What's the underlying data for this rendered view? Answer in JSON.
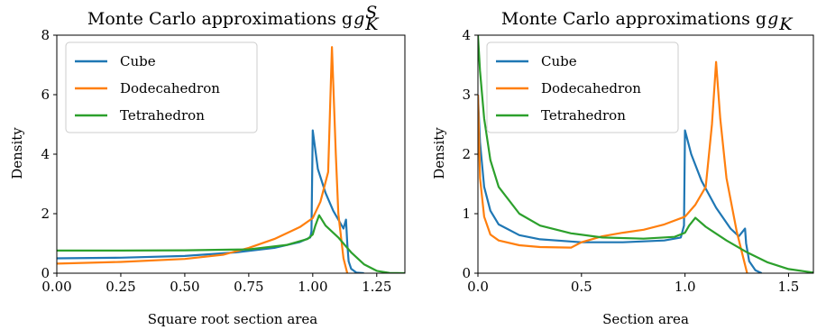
{
  "colors": {
    "cube": "#1f77b4",
    "dodecahedron": "#ff7f0e",
    "tetrahedron": "#2ca02c"
  },
  "chart_data": [
    {
      "type": "line",
      "title": "Monte Carlo approximations g",
      "title_sup": "S",
      "title_sub": "K",
      "xlabel": "Square root section area",
      "ylabel": "Density",
      "xlim": [
        0,
        1.36
      ],
      "ylim": [
        0,
        8
      ],
      "xticks": [
        "0.00",
        "0.25",
        "0.50",
        "0.75",
        "1.00",
        "1.25"
      ],
      "xtick_values": [
        0,
        0.25,
        0.5,
        0.75,
        1.0,
        1.25
      ],
      "yticks": [
        "0",
        "2",
        "4",
        "6",
        "8"
      ],
      "ytick_values": [
        0,
        2,
        4,
        6,
        8
      ],
      "legend": "top-left",
      "grid": false,
      "series": [
        {
          "name": "Cube",
          "color": "#1f77b4",
          "points": [
            [
              0,
              0.5
            ],
            [
              0.25,
              0.52
            ],
            [
              0.5,
              0.58
            ],
            [
              0.7,
              0.7
            ],
            [
              0.85,
              0.85
            ],
            [
              0.95,
              1.05
            ],
            [
              0.99,
              1.2
            ],
            [
              0.995,
              1.4
            ],
            [
              1.0,
              4.8
            ],
            [
              1.02,
              3.5
            ],
            [
              1.05,
              2.7
            ],
            [
              1.08,
              2.1
            ],
            [
              1.12,
              1.5
            ],
            [
              1.13,
              1.8
            ],
            [
              1.135,
              1.0
            ],
            [
              1.14,
              0.4
            ],
            [
              1.15,
              0.15
            ],
            [
              1.17,
              0.02
            ],
            [
              1.2,
              0
            ]
          ]
        },
        {
          "name": "Dodecahedron",
          "color": "#ff7f0e",
          "points": [
            [
              0,
              0.32
            ],
            [
              0.25,
              0.38
            ],
            [
              0.5,
              0.48
            ],
            [
              0.65,
              0.62
            ],
            [
              0.75,
              0.85
            ],
            [
              0.85,
              1.15
            ],
            [
              0.95,
              1.55
            ],
            [
              1.0,
              1.85
            ],
            [
              1.03,
              2.4
            ],
            [
              1.06,
              3.4
            ],
            [
              1.075,
              7.6
            ],
            [
              1.09,
              4.0
            ],
            [
              1.1,
              2.0
            ],
            [
              1.12,
              0.5
            ],
            [
              1.135,
              0
            ]
          ]
        },
        {
          "name": "Tetrahedron",
          "color": "#2ca02c",
          "points": [
            [
              0,
              0.76
            ],
            [
              0.25,
              0.76
            ],
            [
              0.5,
              0.77
            ],
            [
              0.75,
              0.8
            ],
            [
              0.9,
              0.95
            ],
            [
              0.98,
              1.15
            ],
            [
              1.0,
              1.3
            ],
            [
              1.01,
              1.6
            ],
            [
              1.025,
              1.95
            ],
            [
              1.05,
              1.6
            ],
            [
              1.1,
              1.2
            ],
            [
              1.15,
              0.7
            ],
            [
              1.2,
              0.3
            ],
            [
              1.25,
              0.08
            ],
            [
              1.3,
              0.01
            ],
            [
              1.36,
              0
            ]
          ]
        }
      ]
    },
    {
      "type": "line",
      "title": "Monte Carlo approximations g",
      "title_sub": "K",
      "xlabel": "Section area",
      "ylabel": "Density",
      "xlim": [
        0,
        1.62
      ],
      "ylim": [
        0,
        4
      ],
      "xticks": [
        "0.0",
        "0.5",
        "1.0",
        "1.5"
      ],
      "xtick_values": [
        0,
        0.5,
        1.0,
        1.5
      ],
      "yticks": [
        "0",
        "1",
        "2",
        "3",
        "4"
      ],
      "ytick_values": [
        0,
        1,
        2,
        3,
        4
      ],
      "legend": "top-left",
      "grid": false,
      "series": [
        {
          "name": "Cube",
          "color": "#1f77b4",
          "points": [
            [
              0,
              3.0
            ],
            [
              0.01,
              2.2
            ],
            [
              0.03,
              1.45
            ],
            [
              0.06,
              1.05
            ],
            [
              0.1,
              0.82
            ],
            [
              0.2,
              0.64
            ],
            [
              0.3,
              0.57
            ],
            [
              0.5,
              0.52
            ],
            [
              0.7,
              0.52
            ],
            [
              0.9,
              0.55
            ],
            [
              0.98,
              0.6
            ],
            [
              0.995,
              0.8
            ],
            [
              1.0,
              2.4
            ],
            [
              1.03,
              2.0
            ],
            [
              1.08,
              1.55
            ],
            [
              1.15,
              1.1
            ],
            [
              1.22,
              0.75
            ],
            [
              1.26,
              0.62
            ],
            [
              1.29,
              0.75
            ],
            [
              1.295,
              0.5
            ],
            [
              1.31,
              0.2
            ],
            [
              1.34,
              0.05
            ],
            [
              1.37,
              0
            ]
          ]
        },
        {
          "name": "Dodecahedron",
          "color": "#ff7f0e",
          "points": [
            [
              0,
              3.0
            ],
            [
              0.01,
              1.6
            ],
            [
              0.03,
              0.95
            ],
            [
              0.06,
              0.65
            ],
            [
              0.1,
              0.55
            ],
            [
              0.2,
              0.47
            ],
            [
              0.3,
              0.44
            ],
            [
              0.45,
              0.43
            ],
            [
              0.5,
              0.52
            ],
            [
              0.6,
              0.62
            ],
            [
              0.7,
              0.68
            ],
            [
              0.8,
              0.73
            ],
            [
              0.9,
              0.82
            ],
            [
              1.0,
              0.95
            ],
            [
              1.05,
              1.15
            ],
            [
              1.1,
              1.45
            ],
            [
              1.13,
              2.5
            ],
            [
              1.15,
              3.55
            ],
            [
              1.17,
              2.6
            ],
            [
              1.2,
              1.6
            ],
            [
              1.25,
              0.7
            ],
            [
              1.3,
              0
            ]
          ]
        },
        {
          "name": "Tetrahedron",
          "color": "#2ca02c",
          "points": [
            [
              0,
              4.0
            ],
            [
              0.01,
              3.4
            ],
            [
              0.03,
              2.6
            ],
            [
              0.06,
              1.9
            ],
            [
              0.1,
              1.45
            ],
            [
              0.2,
              1.0
            ],
            [
              0.3,
              0.8
            ],
            [
              0.45,
              0.67
            ],
            [
              0.6,
              0.6
            ],
            [
              0.8,
              0.58
            ],
            [
              0.95,
              0.61
            ],
            [
              1.0,
              0.68
            ],
            [
              1.02,
              0.8
            ],
            [
              1.05,
              0.93
            ],
            [
              1.1,
              0.78
            ],
            [
              1.2,
              0.55
            ],
            [
              1.3,
              0.35
            ],
            [
              1.4,
              0.18
            ],
            [
              1.5,
              0.07
            ],
            [
              1.62,
              0.01
            ]
          ]
        }
      ]
    }
  ]
}
